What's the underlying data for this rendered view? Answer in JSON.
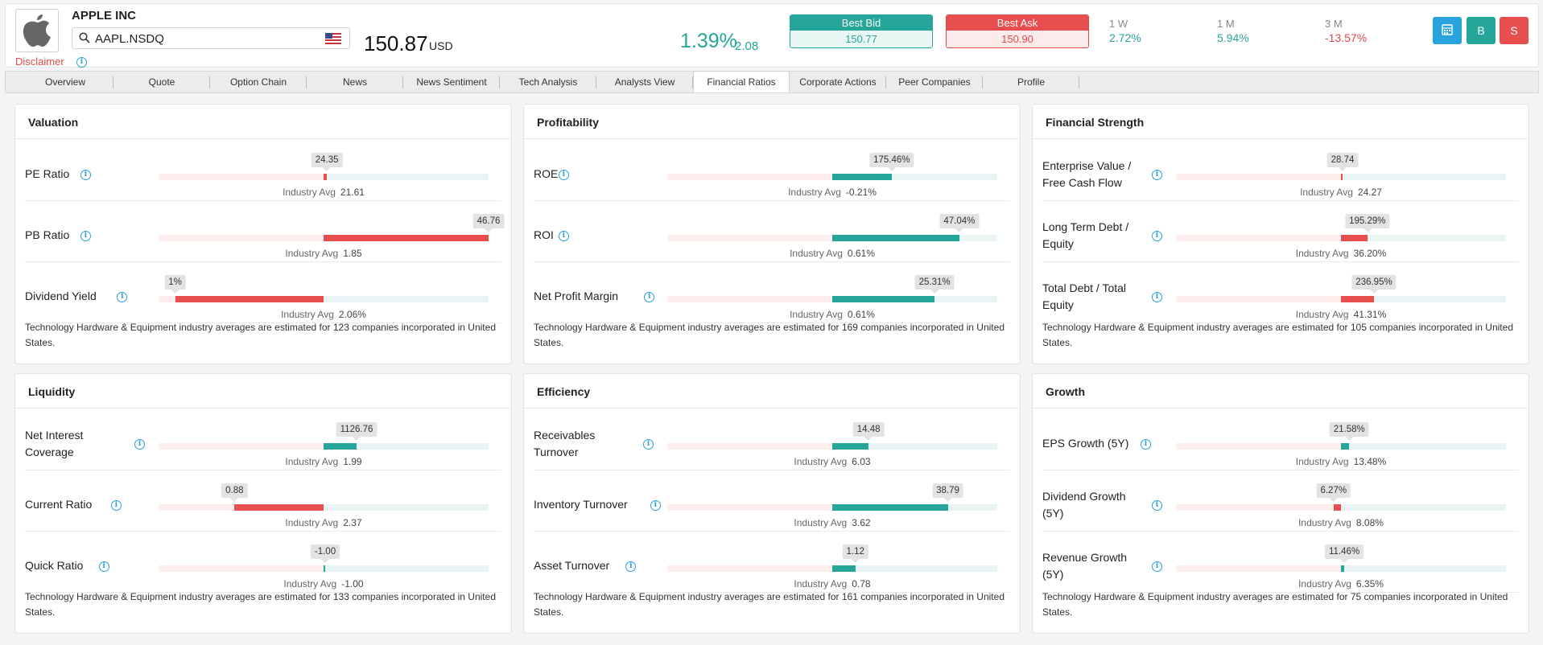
{
  "colors": {
    "green": "#26a69a",
    "red": "#e94e4e",
    "blue_button": "#29a3dd"
  },
  "header": {
    "company_name": "APPLE INC",
    "logo_icon": "apple-logo",
    "search_value": "AAPL.NSDQ",
    "country_flag": "us-flag-icon",
    "disclaimer": "Disclaimer",
    "price": "150.87",
    "currency": "USD",
    "change_pct": "1.39%",
    "change_abs": "2.08",
    "best_bid_label": "Best Bid",
    "best_bid_value": "150.77",
    "best_ask_label": "Best Ask",
    "best_ask_value": "150.90",
    "perf": [
      {
        "label": "1 W",
        "value": "2.72%",
        "color": "#26a69a"
      },
      {
        "label": "1 M",
        "value": "5.94%",
        "color": "#26a69a"
      },
      {
        "label": "3 M",
        "value": "-13.57%",
        "color": "#e04a4a"
      }
    ],
    "buttons": [
      {
        "icon": "calculator-icon",
        "label": "",
        "color": "#29a3dd"
      },
      {
        "icon": "",
        "label": "B",
        "color": "#26a69a"
      },
      {
        "icon": "",
        "label": "S",
        "color": "#e94e4e"
      }
    ]
  },
  "tabs": [
    "Overview",
    "Quote",
    "Option Chain",
    "News",
    "News Sentiment",
    "Tech Analysis",
    "Analysts View",
    "Financial Ratios",
    "Corporate Actions",
    "Peer Companies",
    "Profile"
  ],
  "active_tab": "Financial Ratios",
  "avg_label": "Industry Avg",
  "cards": [
    {
      "title": "Valuation",
      "rows": [
        {
          "label": [
            "PE Ratio"
          ],
          "value": "24.35",
          "avg": "21.61",
          "dir": "right",
          "color": "red",
          "fill": 0.02
        },
        {
          "label": [
            "PB Ratio"
          ],
          "value": "46.76",
          "avg": "1.85",
          "dir": "right",
          "color": "red",
          "fill": 1.0
        },
        {
          "label": [
            "Dividend Yield"
          ],
          "value": "1%",
          "avg": "2.06%",
          "dir": "left",
          "color": "red",
          "fill": 0.9
        }
      ],
      "note": "Technology Hardware & Equipment industry averages are estimated for 123 companies incorporated in United States."
    },
    {
      "title": "Profitability",
      "rows": [
        {
          "label": [
            "ROE"
          ],
          "value": "175.46%",
          "avg": "-0.21%",
          "dir": "right",
          "color": "green",
          "fill": 0.36
        },
        {
          "label": [
            "ROI"
          ],
          "value": "47.04%",
          "avg": "0.61%",
          "dir": "right",
          "color": "green",
          "fill": 0.77
        },
        {
          "label": [
            "Net Profit Margin"
          ],
          "value": "25.31%",
          "avg": "0.61%",
          "dir": "right",
          "color": "green",
          "fill": 0.62
        }
      ],
      "note": "Technology Hardware & Equipment industry averages are estimated for 169 companies incorporated in United States."
    },
    {
      "title": "Financial Strength",
      "rows": [
        {
          "label": [
            "Enterprise Value /",
            "Free Cash Flow"
          ],
          "value": "28.74",
          "avg": "24.27",
          "dir": "right",
          "color": "red",
          "fill": 0.006
        },
        {
          "label": [
            "Long Term Debt /",
            "Equity"
          ],
          "value": "195.29%",
          "avg": "36.20%",
          "dir": "right",
          "color": "red",
          "fill": 0.16
        },
        {
          "label": [
            "Total Debt / Total",
            "Equity"
          ],
          "value": "236.95%",
          "avg": "41.31%",
          "dir": "right",
          "color": "red",
          "fill": 0.2
        }
      ],
      "note": "Technology Hardware & Equipment industry averages are estimated for 105 companies incorporated in United States."
    },
    {
      "title": "Liquidity",
      "rows": [
        {
          "label": [
            "Net Interest",
            "Coverage"
          ],
          "value": "1126.76",
          "avg": "1.99",
          "dir": "right",
          "color": "green",
          "fill": 0.2
        },
        {
          "label": [
            "Current Ratio"
          ],
          "value": "0.88",
          "avg": "2.37",
          "dir": "left",
          "color": "red",
          "fill": 0.54
        },
        {
          "label": [
            "Quick Ratio"
          ],
          "value": "-1.00",
          "avg": "-1.00",
          "dir": "right",
          "color": "green",
          "fill": 0
        }
      ],
      "note": "Technology Hardware & Equipment industry averages are estimated for 133 companies incorporated in United States."
    },
    {
      "title": "Efficiency",
      "rows": [
        {
          "label": [
            "Receivables",
            "Turnover"
          ],
          "value": "14.48",
          "avg": "6.03",
          "dir": "right",
          "color": "green",
          "fill": 0.22
        },
        {
          "label": [
            "Inventory Turnover"
          ],
          "value": "38.79",
          "avg": "3.62",
          "dir": "right",
          "color": "green",
          "fill": 0.7
        },
        {
          "label": [
            "Asset Turnover"
          ],
          "value": "1.12",
          "avg": "0.78",
          "dir": "right",
          "color": "green",
          "fill": 0.14
        }
      ],
      "note": "Technology Hardware & Equipment industry averages are estimated for 161 companies incorporated in United States."
    },
    {
      "title": "Growth",
      "rows": [
        {
          "label": [
            "EPS Growth (5Y)"
          ],
          "value": "21.58%",
          "avg": "13.48%",
          "dir": "right",
          "color": "green",
          "fill": 0.05
        },
        {
          "label": [
            "Dividend Growth",
            "(5Y)"
          ],
          "value": "6.27%",
          "avg": "8.08%",
          "dir": "left",
          "color": "red",
          "fill": 0.045
        },
        {
          "label": [
            "Revenue Growth",
            "(5Y)"
          ],
          "value": "11.46%",
          "avg": "6.35%",
          "dir": "right",
          "color": "green",
          "fill": 0.02
        }
      ],
      "note": "Technology Hardware & Equipment industry averages are estimated for 75 companies incorporated in United States."
    }
  ]
}
